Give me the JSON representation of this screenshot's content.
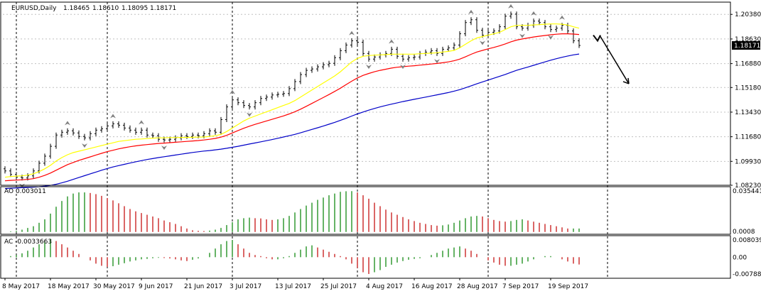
{
  "symbol_header": {
    "symbol": "EURUSD,Daily",
    "open": "1.18465",
    "high": "1.18610",
    "low": "1.18095",
    "close": "1.18171"
  },
  "colors": {
    "background": "#ffffff",
    "grid": "#c0c0c0",
    "candles": "#000000",
    "ma_fast": "#ffff00",
    "ma_mid": "#ff0000",
    "ma_slow": "#0000c8",
    "histogram_up": "#008000",
    "histogram_down": "#c00000",
    "fractal": "#808080",
    "price_tag_bg": "#000000",
    "price_tag_text": "#ffffff",
    "forecast_arrow": "#000000"
  },
  "indicators": {
    "ao_label": "AO 0.003011",
    "ac_label": "AC -0.0033663"
  },
  "chart_data": [
    {
      "type": "candlestick",
      "title": "EURUSD,Daily",
      "timeframe": "Daily",
      "ylim": [
        1.0823,
        1.2125
      ],
      "y_ticks": [
        "1.20380",
        "1.18630",
        "1.16880",
        "1.15180",
        "1.13430",
        "1.11680",
        "1.09930",
        "1.08230"
      ],
      "current_price": "1.18171",
      "x_tick_labels": [
        "8 May 2017",
        "18 May 2017",
        "30 May 2017",
        "9 Jun 2017",
        "21 Jun 2017",
        "3 Jul 2017",
        "13 Jul 2017",
        "25 Jul 2017",
        "4 Aug 2017",
        "16 Aug 2017",
        "28 Aug 2017",
        "7 Sep 2017",
        "19 Sep 2017"
      ],
      "x_tick_index": [
        0,
        8,
        16,
        24,
        32,
        40,
        48,
        56,
        64,
        72,
        80,
        88,
        96
      ],
      "period_separator_index": [
        2,
        18,
        40,
        62,
        85,
        106
      ],
      "grid": true,
      "close": [
        1.0925,
        1.09,
        1.088,
        1.0875,
        1.089,
        1.0925,
        1.098,
        1.103,
        1.11,
        1.118,
        1.12,
        1.121,
        1.1195,
        1.117,
        1.116,
        1.119,
        1.1215,
        1.1225,
        1.1245,
        1.126,
        1.125,
        1.123,
        1.1215,
        1.12,
        1.1215,
        1.118,
        1.1175,
        1.115,
        1.1145,
        1.115,
        1.116,
        1.1175,
        1.117,
        1.118,
        1.1175,
        1.119,
        1.121,
        1.12,
        1.129,
        1.138,
        1.143,
        1.141,
        1.139,
        1.138,
        1.141,
        1.144,
        1.145,
        1.1465,
        1.147,
        1.1475,
        1.151,
        1.156,
        1.161,
        1.164,
        1.165,
        1.1665,
        1.168,
        1.169,
        1.173,
        1.178,
        1.182,
        1.185,
        1.184,
        1.176,
        1.172,
        1.1735,
        1.175,
        1.176,
        1.179,
        1.174,
        1.172,
        1.173,
        1.1735,
        1.176,
        1.177,
        1.178,
        1.176,
        1.179,
        1.18,
        1.182,
        1.19,
        1.198,
        1.2,
        1.1925,
        1.189,
        1.191,
        1.192,
        1.195,
        1.2025,
        1.204,
        1.195,
        1.194,
        1.196,
        1.199,
        1.198,
        1.195,
        1.193,
        1.194,
        1.196,
        1.192,
        1.185,
        1.1817
      ],
      "series": [
        {
          "name": "",
          "role": "ma_fast",
          "values": [
            1.088,
            1.0885,
            1.0888,
            1.089,
            1.0895,
            1.0905,
            1.092,
            1.094,
            1.0965,
            1.0995,
            1.102,
            1.104,
            1.1055,
            1.1065,
            1.1075,
            1.1085,
            1.1095,
            1.1105,
            1.1115,
            1.1125,
            1.1135,
            1.114,
            1.1145,
            1.115,
            1.1152,
            1.1155,
            1.1158,
            1.116,
            1.116,
            1.1162,
            1.1162,
            1.1163,
            1.1163,
            1.1164,
            1.1165,
            1.1166,
            1.117,
            1.1175,
            1.1185,
            1.1205,
            1.123,
            1.1255,
            1.128,
            1.13,
            1.1315,
            1.133,
            1.1345,
            1.136,
            1.1375,
            1.139,
            1.1405,
            1.1425,
            1.145,
            1.1475,
            1.15,
            1.1525,
            1.155,
            1.1575,
            1.16,
            1.163,
            1.1665,
            1.17,
            1.1725,
            1.174,
            1.1745,
            1.1748,
            1.175,
            1.1752,
            1.1755,
            1.1755,
            1.1755,
            1.1755,
            1.1755,
            1.1758,
            1.176,
            1.1762,
            1.1765,
            1.177,
            1.1775,
            1.1782,
            1.18,
            1.1825,
            1.185,
            1.187,
            1.188,
            1.189,
            1.19,
            1.191,
            1.193,
            1.195,
            1.196,
            1.196,
            1.196,
            1.1963,
            1.1965,
            1.1968,
            1.197,
            1.197,
            1.1968,
            1.1962,
            1.195,
            1.194
          ]
        },
        {
          "name": "",
          "role": "ma_mid",
          "values": [
            1.0855,
            1.0858,
            1.086,
            1.0862,
            1.0865,
            1.087,
            1.088,
            1.0893,
            1.091,
            1.093,
            1.095,
            1.097,
            1.0985,
            1.1,
            1.1012,
            1.1025,
            1.1038,
            1.105,
            1.1062,
            1.1072,
            1.1082,
            1.109,
            1.1097,
            1.1103,
            1.1108,
            1.1112,
            1.1116,
            1.112,
            1.1123,
            1.1126,
            1.1129,
            1.1132,
            1.1135,
            1.1138,
            1.1141,
            1.1145,
            1.115,
            1.1156,
            1.1165,
            1.1178,
            1.1195,
            1.1212,
            1.1228,
            1.1243,
            1.1256,
            1.1268,
            1.128,
            1.1292,
            1.1304,
            1.1316,
            1.133,
            1.1346,
            1.1364,
            1.1384,
            1.1405,
            1.1426,
            1.1447,
            1.1468,
            1.149,
            1.1513,
            1.1538,
            1.1563,
            1.1586,
            1.1604,
            1.1618,
            1.163,
            1.164,
            1.1648,
            1.1656,
            1.1662,
            1.1666,
            1.167,
            1.1673,
            1.1677,
            1.1681,
            1.1685,
            1.1689,
            1.1694,
            1.17,
            1.1708,
            1.172,
            1.1736,
            1.1754,
            1.177,
            1.1782,
            1.1793,
            1.1803,
            1.1814,
            1.1828,
            1.1843,
            1.1855,
            1.1863,
            1.187,
            1.1877,
            1.1883,
            1.1888,
            1.1893,
            1.1897,
            1.19,
            1.19,
            1.1898,
            1.1895
          ]
        },
        {
          "name": "",
          "role": "ma_slow",
          "values": [
            1.08,
            1.0802,
            1.0804,
            1.0806,
            1.0808,
            1.081,
            1.0813,
            1.0817,
            1.0822,
            1.083,
            1.084,
            1.0852,
            1.0865,
            1.0878,
            1.0891,
            1.0904,
            1.0917,
            1.093,
            1.0942,
            1.0953,
            1.0963,
            1.0972,
            1.0981,
            1.099,
            1.0998,
            1.1006,
            1.1013,
            1.102,
            1.1026,
            1.1032,
            1.1038,
            1.1044,
            1.105,
            1.1056,
            1.1061,
            1.1066,
            1.107,
            1.1075,
            1.108,
            1.1086,
            1.1093,
            1.11,
            1.1108,
            1.1116,
            1.1124,
            1.1132,
            1.114,
            1.1148,
            1.1157,
            1.1166,
            1.1175,
            1.1185,
            1.1196,
            1.1208,
            1.122,
            1.1232,
            1.1244,
            1.1257,
            1.127,
            1.1284,
            1.1299,
            1.1315,
            1.133,
            1.1344,
            1.1357,
            1.1369,
            1.138,
            1.139,
            1.14,
            1.1409,
            1.1418,
            1.1426,
            1.1434,
            1.1442,
            1.145,
            1.1458,
            1.1466,
            1.1474,
            1.1482,
            1.1492,
            1.1503,
            1.1516,
            1.153,
            1.1544,
            1.1558,
            1.1571,
            1.1584,
            1.1597,
            1.1611,
            1.1626,
            1.164,
            1.1652,
            1.1664,
            1.1676,
            1.1688,
            1.17,
            1.1712,
            1.1723,
            1.1733,
            1.1742,
            1.175,
            1.1756
          ]
        }
      ]
    },
    {
      "type": "bar",
      "title": "AO 0.003011",
      "y_ticks": [
        "0.035441",
        "0.0008"
      ],
      "ylim": [
        -0.002,
        0.037
      ],
      "values": [
        0.0,
        0.0005,
        0.001,
        0.002,
        0.0035,
        0.005,
        0.008,
        0.011,
        0.016,
        0.022,
        0.027,
        0.031,
        0.0335,
        0.0345,
        0.0345,
        0.034,
        0.033,
        0.0315,
        0.0295,
        0.0275,
        0.025,
        0.0225,
        0.02,
        0.018,
        0.0165,
        0.015,
        0.0135,
        0.012,
        0.01,
        0.0085,
        0.007,
        0.005,
        0.003,
        0.0015,
        0.001,
        0.0008,
        0.0012,
        0.002,
        0.0035,
        0.006,
        0.0085,
        0.011,
        0.012,
        0.0125,
        0.012,
        0.0118,
        0.011,
        0.0105,
        0.011,
        0.012,
        0.014,
        0.017,
        0.02,
        0.023,
        0.0255,
        0.028,
        0.03,
        0.032,
        0.0335,
        0.035,
        0.0355,
        0.0356,
        0.0345,
        0.032,
        0.029,
        0.0255,
        0.0225,
        0.0195,
        0.017,
        0.015,
        0.013,
        0.011,
        0.0095,
        0.008,
        0.007,
        0.006,
        0.0055,
        0.0058,
        0.0065,
        0.008,
        0.01,
        0.012,
        0.0135,
        0.014,
        0.0135,
        0.012,
        0.0105,
        0.0095,
        0.009,
        0.0095,
        0.0105,
        0.011,
        0.01,
        0.009,
        0.008,
        0.007,
        0.006,
        0.005,
        0.004,
        0.003,
        0.003,
        0.003
      ]
    },
    {
      "type": "bar",
      "title": "AC -0.0033663",
      "y_ticks": [
        "0.0080396",
        "0.00",
        "-0.0078844"
      ],
      "ylim": [
        -0.0088,
        0.009
      ],
      "values": [
        0.0,
        0.0005,
        0.001,
        0.0018,
        0.003,
        0.0045,
        0.006,
        0.0075,
        0.0085,
        0.0075,
        0.006,
        0.0045,
        0.003,
        0.0015,
        0.0,
        -0.0015,
        -0.003,
        -0.004,
        -0.0045,
        -0.0042,
        -0.0035,
        -0.0028,
        -0.002,
        -0.0015,
        -0.001,
        -0.0008,
        -0.0005,
        -0.0003,
        -0.0004,
        -0.0006,
        -0.001,
        -0.0015,
        -0.0018,
        -0.0012,
        -0.0006,
        0.0,
        0.002,
        0.004,
        0.006,
        0.0075,
        0.008,
        0.006,
        0.004,
        0.002,
        0.001,
        0.0005,
        -0.0005,
        -0.001,
        -0.001,
        -0.0005,
        0.0005,
        0.002,
        0.0035,
        0.005,
        0.0055,
        0.0045,
        0.0035,
        0.0025,
        0.0015,
        0.0005,
        -0.001,
        -0.003,
        -0.005,
        -0.007,
        -0.0078,
        -0.007,
        -0.006,
        -0.0045,
        -0.0035,
        -0.0025,
        -0.0018,
        -0.0012,
        -0.0008,
        -0.0005,
        0.0,
        0.001,
        0.002,
        0.003,
        0.004,
        0.0045,
        0.005,
        0.004,
        0.003,
        0.0015,
        0.0,
        -0.0015,
        -0.0025,
        -0.0035,
        -0.004,
        -0.004,
        -0.0035,
        -0.003,
        -0.002,
        -0.001,
        0.0,
        0.0005,
        0.0005,
        0.0,
        -0.001,
        -0.002,
        -0.003,
        -0.0034
      ]
    }
  ]
}
